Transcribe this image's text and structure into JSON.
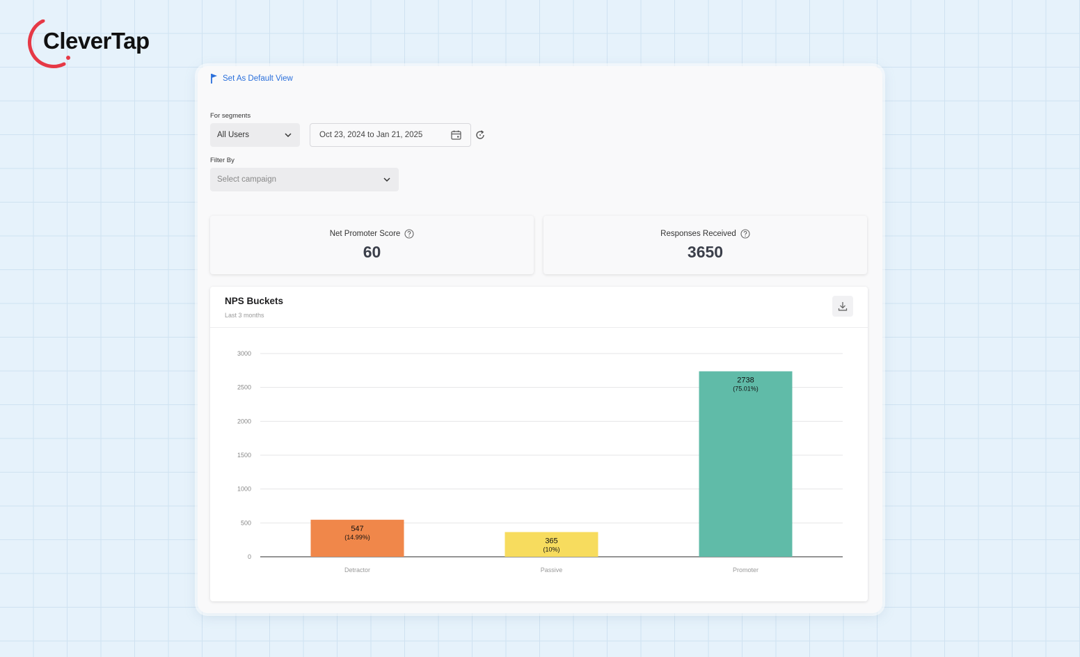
{
  "brand": {
    "name": "CleverTap",
    "color": "#e63946"
  },
  "toolbar": {
    "default_view_label": "Set As Default View"
  },
  "filters": {
    "segments_label": "For segments",
    "segment_value": "All Users",
    "date_range": "Oct 23, 2024 to Jan 21, 2025",
    "filter_by_label": "Filter By",
    "campaign_placeholder": "Select campaign"
  },
  "stats": {
    "nps": {
      "label": "Net Promoter Score",
      "value": "60"
    },
    "responses": {
      "label": "Responses Received",
      "value": "3650"
    }
  },
  "chart": {
    "title": "NPS Buckets",
    "subtitle": "Last 3 months"
  },
  "chart_data": {
    "type": "bar",
    "title": "NPS Buckets",
    "subtitle": "Last 3 months",
    "categories": [
      "Detractor",
      "Passive",
      "Promoter"
    ],
    "values": [
      547,
      365,
      2738
    ],
    "value_labels": [
      "547",
      "365",
      "2738"
    ],
    "percent_labels": [
      "(14.99%)",
      "(10%)",
      "(75.01%)"
    ],
    "colors": [
      "#f0874a",
      "#f7dc5e",
      "#60bba8"
    ],
    "yticks": [
      0,
      500,
      1000,
      1500,
      2000,
      2500,
      3000
    ],
    "ylim": [
      0,
      3000
    ],
    "xlabel": "",
    "ylabel": "",
    "grid": true
  }
}
